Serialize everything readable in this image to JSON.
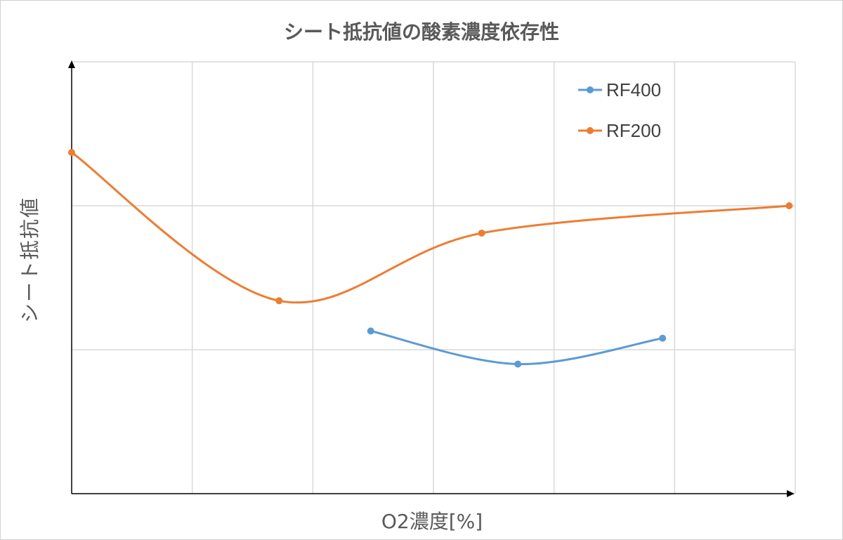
{
  "chart_data": {
    "type": "line",
    "title": "シート抵抗値の酸素濃度依存性",
    "xlabel": "O2濃度[%]",
    "ylabel": "シート抵抗値",
    "xlim": [
      0,
      6
    ],
    "ylim": [
      0,
      3
    ],
    "grid": true,
    "tick_labels_shown": false,
    "legend_position": "top-right",
    "smooth": true,
    "series": [
      {
        "name": "RF400",
        "color": "#5b9bd5",
        "points": [
          [
            2.48,
            1.13
          ],
          [
            3.7,
            0.9
          ],
          [
            4.9,
            1.08
          ]
        ]
      },
      {
        "name": "RF200",
        "color": "#ed7d31",
        "points": [
          [
            0.0,
            2.37
          ],
          [
            1.72,
            1.34
          ],
          [
            3.4,
            1.81
          ],
          [
            5.95,
            2.0
          ]
        ]
      }
    ]
  }
}
